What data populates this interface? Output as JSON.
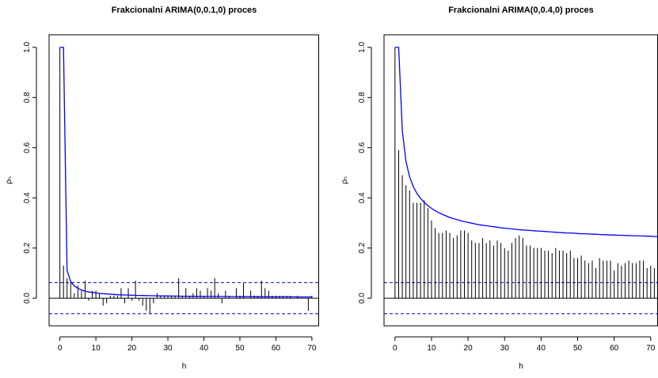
{
  "chart_data": [
    {
      "type": "bar",
      "title": "Frakcionalni ARIMA(0,0.1,0) proces",
      "xlabel": "h",
      "ylabel": "ρₕ",
      "xlim": [
        -3,
        72
      ],
      "ylim": [
        -0.11,
        1.05
      ],
      "xticks": [
        0,
        10,
        20,
        30,
        40,
        50,
        60,
        70
      ],
      "yticks": [
        0.0,
        0.2,
        0.4,
        0.6,
        0.8,
        1.0
      ],
      "ci_level": 0.062,
      "ci_color": "#0000cc",
      "acf_color": "#000000",
      "theory_color": "#0000ff",
      "x": [
        0,
        1,
        2,
        3,
        4,
        5,
        6,
        7,
        8,
        9,
        10,
        11,
        12,
        13,
        14,
        15,
        16,
        17,
        18,
        19,
        20,
        21,
        22,
        23,
        24,
        25,
        26,
        27,
        28,
        29,
        30,
        31,
        32,
        33,
        34,
        35,
        36,
        37,
        38,
        39,
        40,
        41,
        42,
        43,
        44,
        45,
        46,
        47,
        48,
        49,
        50,
        51,
        52,
        53,
        54,
        55,
        56,
        57,
        58,
        59,
        60,
        61,
        62,
        63,
        64,
        65,
        66,
        67,
        68,
        69,
        70
      ],
      "sample_acf": [
        1.0,
        0.13,
        0.08,
        0.07,
        0.02,
        0.05,
        0.03,
        0.07,
        -0.01,
        0.03,
        0.03,
        0.02,
        -0.03,
        -0.02,
        0.01,
        0.01,
        0.01,
        0.04,
        -0.02,
        0.04,
        -0.01,
        0.07,
        -0.01,
        -0.03,
        -0.05,
        -0.06,
        -0.02,
        0.02,
        0.01,
        0.01,
        0.01,
        0.01,
        0.01,
        0.08,
        0.01,
        0.04,
        0.01,
        0.02,
        0.04,
        0.03,
        0.01,
        0.04,
        0.03,
        0.08,
        0.02,
        -0.02,
        0.03,
        0.01,
        0.0,
        0.04,
        0.01,
        0.06,
        0.0,
        0.03,
        0.01,
        0.01,
        0.07,
        0.04,
        0.03,
        0.01,
        0.01,
        0.01,
        0.01,
        0.01,
        0.01,
        0.0,
        0.01,
        0.0,
        0.0,
        -0.05,
        0.01
      ],
      "theory_acf": [
        1.0,
        1.0,
        0.111,
        0.066,
        0.049,
        0.039,
        0.033,
        0.028,
        0.025,
        0.023,
        0.021,
        0.019,
        0.018,
        0.017,
        0.016,
        0.015,
        0.014,
        0.0135,
        0.013,
        0.0125,
        0.012,
        0.0115,
        0.011,
        0.0107,
        0.0104,
        0.0101,
        0.0098,
        0.0095,
        0.0093,
        0.009,
        0.0088,
        0.0086,
        0.0084,
        0.0082,
        0.008,
        0.0079,
        0.0077,
        0.0076,
        0.0074,
        0.0073,
        0.0072,
        0.0071,
        0.007,
        0.0069,
        0.0068,
        0.0067,
        0.0066,
        0.0065,
        0.0064,
        0.0063,
        0.0062,
        0.0061,
        0.006,
        0.006,
        0.0059,
        0.0058,
        0.0058,
        0.0057,
        0.0056,
        0.0056,
        0.0055,
        0.0055,
        0.0054,
        0.0054,
        0.0053,
        0.0053,
        0.0052,
        0.0052,
        0.0051,
        0.0051,
        0.005
      ]
    },
    {
      "type": "bar",
      "title": "Frakcionalni ARIMA(0,0.4,0) proces",
      "xlabel": "h",
      "ylabel": "ρₕ",
      "xlim": [
        -3,
        72
      ],
      "ylim": [
        -0.11,
        1.05
      ],
      "xticks": [
        0,
        10,
        20,
        30,
        40,
        50,
        60,
        70
      ],
      "yticks": [
        0.0,
        0.2,
        0.4,
        0.6,
        0.8,
        1.0
      ],
      "ci_level": 0.062,
      "ci_color": "#0000cc",
      "acf_color": "#000000",
      "theory_color": "#0000ff",
      "x": [
        0,
        1,
        2,
        3,
        4,
        5,
        6,
        7,
        8,
        9,
        10,
        11,
        12,
        13,
        14,
        15,
        16,
        17,
        18,
        19,
        20,
        21,
        22,
        23,
        24,
        25,
        26,
        27,
        28,
        29,
        30,
        31,
        32,
        33,
        34,
        35,
        36,
        37,
        38,
        39,
        40,
        41,
        42,
        43,
        44,
        45,
        46,
        47,
        48,
        49,
        50,
        51,
        52,
        53,
        54,
        55,
        56,
        57,
        58,
        59,
        60,
        61,
        62,
        63,
        64,
        65,
        66,
        67,
        68,
        69,
        70,
        71,
        72
      ],
      "sample_acf": [
        1.0,
        0.59,
        0.49,
        0.45,
        0.43,
        0.38,
        0.38,
        0.38,
        0.39,
        0.36,
        0.31,
        0.28,
        0.26,
        0.26,
        0.27,
        0.26,
        0.24,
        0.25,
        0.27,
        0.27,
        0.26,
        0.23,
        0.22,
        0.22,
        0.24,
        0.22,
        0.23,
        0.21,
        0.23,
        0.22,
        0.2,
        0.19,
        0.22,
        0.24,
        0.25,
        0.24,
        0.21,
        0.21,
        0.2,
        0.2,
        0.2,
        0.19,
        0.19,
        0.18,
        0.2,
        0.19,
        0.19,
        0.18,
        0.19,
        0.16,
        0.16,
        0.17,
        0.15,
        0.14,
        0.15,
        0.12,
        0.16,
        0.15,
        0.15,
        0.15,
        0.11,
        0.14,
        0.13,
        0.14,
        0.15,
        0.14,
        0.14,
        0.15,
        0.15,
        0.12,
        0.13,
        0.12,
        0.14
      ],
      "theory_acf": [
        1.0,
        1.0,
        0.667,
        0.545,
        0.484,
        0.445,
        0.418,
        0.398,
        0.382,
        0.369,
        0.358,
        0.349,
        0.341,
        0.334,
        0.328,
        0.322,
        0.317,
        0.313,
        0.309,
        0.305,
        0.302,
        0.299,
        0.296,
        0.293,
        0.291,
        0.289,
        0.287,
        0.285,
        0.283,
        0.281,
        0.279,
        0.278,
        0.276,
        0.275,
        0.273,
        0.272,
        0.271,
        0.27,
        0.269,
        0.268,
        0.267,
        0.266,
        0.265,
        0.264,
        0.263,
        0.262,
        0.261,
        0.26,
        0.26,
        0.259,
        0.258,
        0.257,
        0.257,
        0.256,
        0.255,
        0.255,
        0.254,
        0.253,
        0.253,
        0.252,
        0.252,
        0.251,
        0.251,
        0.25,
        0.25,
        0.249,
        0.249,
        0.248,
        0.248,
        0.247,
        0.247,
        0.246,
        0.246
      ]
    }
  ]
}
